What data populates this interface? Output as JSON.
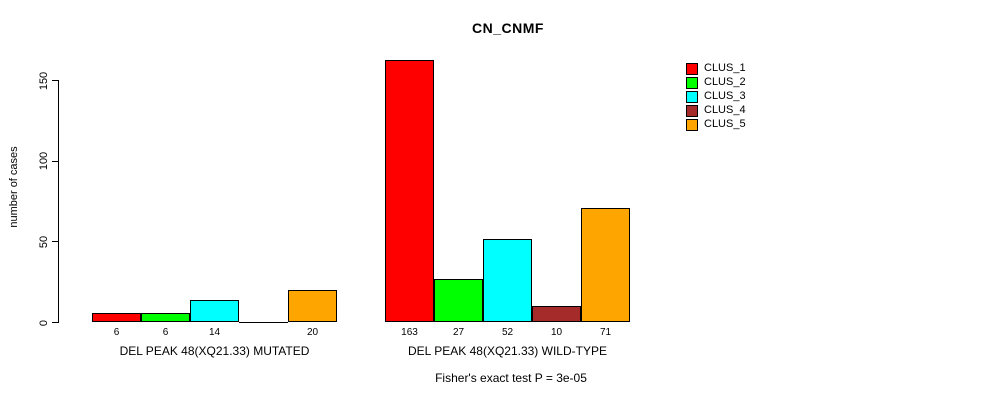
{
  "chart_data": {
    "type": "bar",
    "title": "CN_CNMF",
    "xlabel": "",
    "ylabel": "number of cases",
    "ylim": [
      0,
      150
    ],
    "yticks": [
      0,
      50,
      100,
      150
    ],
    "grid": false,
    "legend_position": "right",
    "categories": [
      "DEL PEAK 48(XQ21.33) MUTATED",
      "DEL PEAK 48(XQ21.33) WILD-TYPE"
    ],
    "series": [
      {
        "name": "CLUS_1",
        "color": "#ff0000",
        "values": [
          6,
          163
        ]
      },
      {
        "name": "CLUS_2",
        "color": "#00ff00",
        "values": [
          6,
          27
        ]
      },
      {
        "name": "CLUS_3",
        "color": "#00ffff",
        "values": [
          14,
          52
        ]
      },
      {
        "name": "CLUS_4",
        "color": "#a52a2a",
        "values": [
          0,
          10
        ]
      },
      {
        "name": "CLUS_5",
        "color": "#ffa500",
        "values": [
          20,
          71
        ]
      }
    ],
    "bar_value_labels": [
      [
        "6",
        "6",
        "14",
        "",
        "20"
      ],
      [
        "163",
        "27",
        "52",
        "10",
        "71"
      ]
    ],
    "annotation": "Fisher's exact test P = 3e-05",
    "background_color": "#ffffff",
    "axis_color": "#000000"
  }
}
